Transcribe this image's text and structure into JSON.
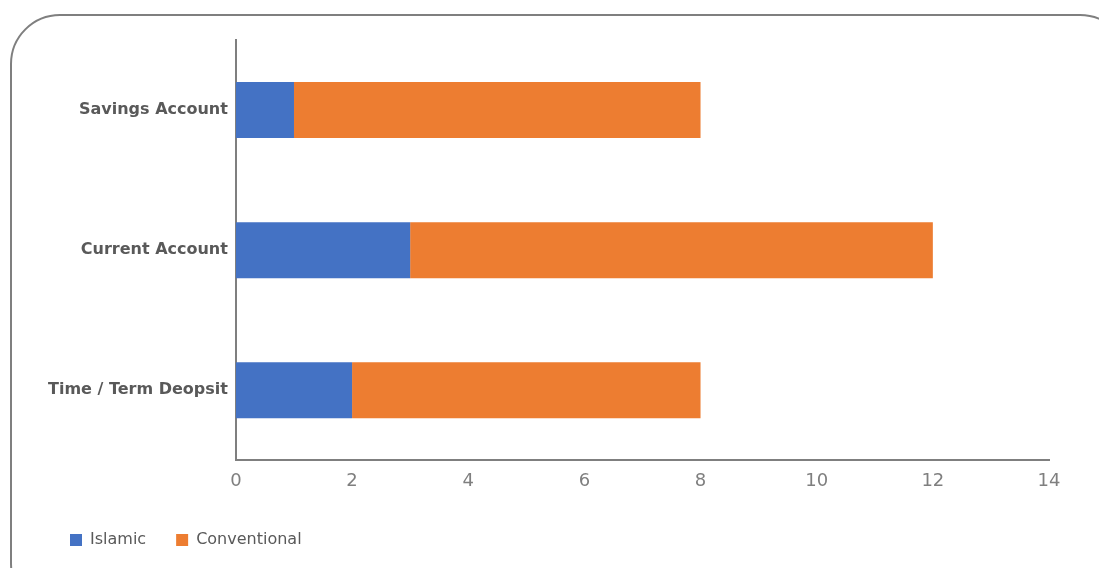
{
  "chart_data": {
    "type": "bar",
    "orientation": "horizontal",
    "stacked": true,
    "categories": [
      "Savings Account",
      "Current Account",
      "Time / Term Deopsit"
    ],
    "series": [
      {
        "name": "Islamic",
        "color": "#4472c4",
        "values": [
          1,
          3,
          2
        ]
      },
      {
        "name": "Conventional",
        "color": "#ed7d31",
        "values": [
          7,
          9,
          6
        ]
      }
    ],
    "xlim": [
      0,
      14
    ],
    "xticks": [
      0,
      2,
      4,
      6,
      8,
      10,
      12,
      14
    ],
    "grid": false,
    "legend": "bottom left"
  }
}
